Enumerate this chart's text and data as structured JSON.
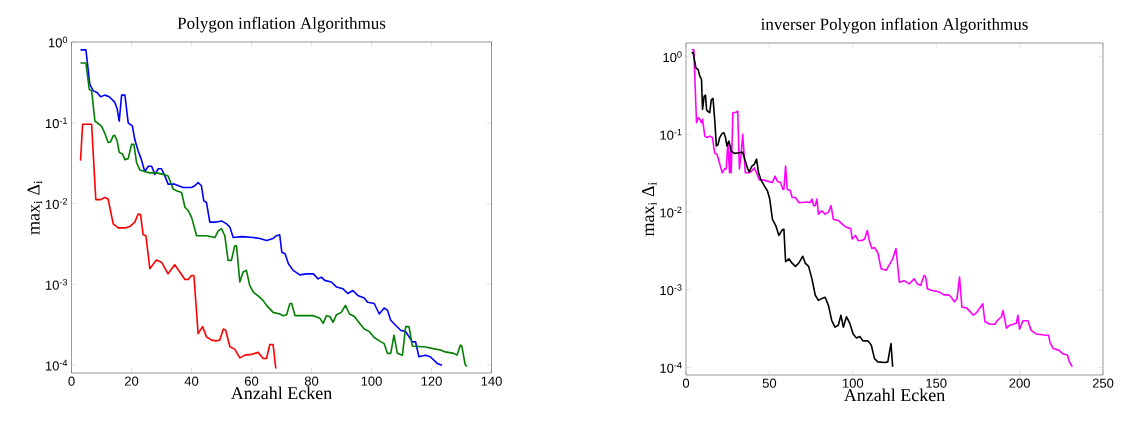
{
  "chart_data": [
    {
      "type": "line",
      "title": "Polygon inflation Algorithmus",
      "xlabel": "Anzahl Ecken",
      "ylabel": "max$_{i}$ Δ$_{i}$",
      "log": "y",
      "xlim": [
        0,
        140
      ],
      "xticks": [
        0,
        20,
        40,
        60,
        80,
        100,
        120,
        140
      ],
      "ylim": [
        8e-05,
        1
      ],
      "yticks": [
        {
          "value": 0.0001,
          "label": "10$^{-4}$"
        },
        {
          "value": 0.001,
          "label": "10$^{-3}$"
        },
        {
          "value": 0.01,
          "label": "10$^{-2}$"
        },
        {
          "value": 0.1,
          "label": "10$^{-1}$"
        },
        {
          "value": 1,
          "label": "10$^{0}$"
        }
      ],
      "series": [
        {
          "color": "#0000ff",
          "x": [
            3,
            4.8,
            6.1,
            7.2,
            8.6,
            9.7,
            11.1,
            12.6,
            14.4,
            15.2,
            15.9,
            16.7,
            17.8,
            18.9,
            20.3,
            21.1,
            22.2,
            23.3,
            24.4,
            25.6,
            26.7,
            27.8,
            28.9,
            30,
            31.1,
            32.2,
            34.4,
            37.2,
            40,
            41.1,
            42.2,
            43.3,
            44.1,
            45,
            46.1,
            48.3,
            50,
            51.7,
            52.8,
            53.9,
            56.7,
            60.6,
            62.8,
            65,
            67.2,
            68.3,
            69.4,
            70.1,
            71.2,
            72.3,
            73.9,
            76.1,
            78.3,
            80.6,
            82.2,
            83.3,
            84.4,
            86.6,
            88.3,
            90.5,
            92.1,
            93.8,
            95.4,
            97.6,
            98.7,
            100.9,
            102.6,
            104.2,
            105.3,
            106.4,
            108.1,
            109.7,
            111.4,
            113.6,
            114.7,
            115.8,
            118,
            119.6,
            121.9,
            123.5
          ],
          "values": [
            0.8,
            0.8,
            0.3,
            0.25,
            0.235,
            0.21,
            0.22,
            0.21,
            0.18,
            0.15,
            0.105,
            0.22,
            0.22,
            0.1,
            0.091,
            0.062,
            0.045,
            0.035,
            0.025,
            0.029,
            0.029,
            0.023,
            0.027,
            0.027,
            0.022,
            0.0174,
            0.0174,
            0.0158,
            0.0158,
            0.0166,
            0.0182,
            0.0166,
            0.0108,
            0.0103,
            0.0059,
            0.0059,
            0.0061,
            0.0056,
            0.0051,
            0.0038,
            0.0039,
            0.0038,
            0.0037,
            0.0035,
            0.0037,
            0.004,
            0.0041,
            0.0025,
            0.0024,
            0.0018,
            0.00149,
            0.00131,
            0.00135,
            0.00135,
            0.00117,
            0.00123,
            0.00112,
            0.00107,
            0.00093,
            0.00088,
            0.00077,
            0.00084,
            0.00073,
            0.00068,
            0.0006,
            0.00058,
            0.00043,
            0.00051,
            0.00048,
            0.00036,
            0.00031,
            0.00027,
            0.00026,
            0.000194,
            0.000194,
            0.000127,
            0.000133,
            0.000127,
            0.000105,
            0.0001
          ]
        },
        {
          "color": "#007f00",
          "x": [
            3,
            4.8,
            5.9,
            6.7,
            7.8,
            8.9,
            10,
            11.1,
            12.2,
            13,
            13.9,
            14.4,
            15.2,
            15.9,
            17,
            17.8,
            18.9,
            20,
            20.8,
            21.7,
            22.8,
            24.4,
            26.1,
            28.3,
            30.6,
            32.2,
            33.9,
            35,
            36.7,
            37.8,
            38.9,
            40,
            41.7,
            45,
            47.8,
            48.9,
            50,
            51.1,
            52.2,
            53.3,
            54.4,
            55,
            56.1,
            57.2,
            58.3,
            59.4,
            60.6,
            62.2,
            63.9,
            65,
            67.2,
            69.4,
            70.6,
            71.7,
            72.8,
            73.4,
            74.5,
            77.2,
            80.6,
            82.8,
            83.9,
            85,
            86.1,
            87.2,
            88.3,
            89.9,
            91.3,
            92.7,
            94.3,
            96,
            97.6,
            99.3,
            100.9,
            102.6,
            104.2,
            105.3,
            106.4,
            107.5,
            108.6,
            110.3,
            111.4,
            112.5,
            113.6,
            118,
            121.3,
            123,
            124.6,
            127.4,
            128.5,
            129.6,
            130.1,
            131.2,
            131.8
          ],
          "values": [
            0.55,
            0.55,
            0.26,
            0.25,
            0.105,
            0.098,
            0.091,
            0.074,
            0.057,
            0.058,
            0.069,
            0.07,
            0.06,
            0.043,
            0.041,
            0.035,
            0.036,
            0.054,
            0.054,
            0.032,
            0.026,
            0.025,
            0.024,
            0.024,
            0.023,
            0.022,
            0.0151,
            0.0144,
            0.0137,
            0.009,
            0.0082,
            0.0068,
            0.004,
            0.004,
            0.0038,
            0.0046,
            0.0049,
            0.004,
            0.00198,
            0.00198,
            0.003,
            0.003,
            0.00107,
            0.00142,
            0.00149,
            0.00097,
            0.0008,
            0.00072,
            0.00063,
            0.00055,
            0.00045,
            0.00043,
            0.00041,
            0.00042,
            0.00058,
            0.00058,
            0.00041,
            0.00041,
            0.00041,
            0.00038,
            0.00033,
            0.00041,
            0.0004,
            0.00034,
            0.00042,
            0.00045,
            0.00055,
            0.00043,
            0.0004,
            0.00033,
            0.00028,
            0.00026,
            0.00022,
            0.0002,
            0.000185,
            0.00014,
            0.00014,
            0.000235,
            0.00014,
            0.000133,
            0.0003,
            0.0003,
            0.000173,
            0.000168,
            0.000158,
            0.000154,
            0.000146,
            0.00014,
            0.000133,
            0.000177,
            0.000173,
            0.000102,
            9.6e-05
          ]
        },
        {
          "color": "#ff0000",
          "x": [
            3,
            3.7,
            6.7,
            8.1,
            9.7,
            11.1,
            12.2,
            13.9,
            15.6,
            17.8,
            19.4,
            21.1,
            22.2,
            23,
            23.9,
            24.8,
            26.1,
            28.3,
            30,
            32.2,
            34.4,
            36.1,
            37.8,
            38.9,
            40,
            40.8,
            42.2,
            43.7,
            45,
            46.7,
            48.3,
            49.4,
            50.6,
            51.4,
            52.8,
            54.4,
            56.1,
            57.8,
            60,
            62.2,
            63.9,
            65,
            66.1,
            67.2,
            68.1
          ],
          "values": [
            0.034,
            0.096,
            0.096,
            0.0112,
            0.0112,
            0.0119,
            0.0114,
            0.0056,
            0.005,
            0.005,
            0.0052,
            0.0059,
            0.0074,
            0.0073,
            0.0041,
            0.004,
            0.00156,
            0.002,
            0.00188,
            0.00135,
            0.00175,
            0.00142,
            0.00115,
            0.00115,
            0.00129,
            0.00129,
            0.000246,
            0.0003,
            0.000224,
            0.000204,
            0.0002,
            0.000204,
            0.00028,
            0.00027,
            0.000169,
            0.000158,
            0.000123,
            0.000133,
            0.000136,
            0.000144,
            0.000121,
            0.000121,
            0.00018,
            0.00018,
            9.1e-05
          ]
        }
      ]
    },
    {
      "type": "line",
      "title": "inverser Polygon inflation Algorithmus",
      "xlabel": "Anzahl Ecken",
      "ylabel": "max$_{i}$ Δ$_{i}$",
      "log": "y",
      "xlim": [
        0,
        250
      ],
      "xticks": [
        0,
        50,
        100,
        150,
        200,
        250
      ],
      "ylim": [
        8e-05,
        1.5
      ],
      "yticks": [
        {
          "value": 0.0001,
          "label": "10$^{-4}$"
        },
        {
          "value": 0.001,
          "label": "10$^{-3}$"
        },
        {
          "value": 0.01,
          "label": "10$^{-2}$"
        },
        {
          "value": 0.1,
          "label": "10$^{-1}$"
        },
        {
          "value": 1,
          "label": "10$^{0}$"
        }
      ],
      "series": [
        {
          "color": "#ff00ff",
          "x": [
            3.4,
            4.7,
            6.3,
            7.3,
            8.3,
            9.3,
            9.9,
            11.3,
            12.6,
            14.2,
            15.8,
            17.2,
            18.6,
            19.8,
            20.6,
            21.7,
            23.1,
            24.1,
            25.1,
            26.1,
            26.7,
            27.1,
            28.1,
            30,
            31,
            32,
            33,
            34,
            35.6,
            37.9,
            39.5,
            40.9,
            42.3,
            43.9,
            45.8,
            48.8,
            51.8,
            53.4,
            54.7,
            56.7,
            58.1,
            58.7,
            59.7,
            60.7,
            62.6,
            63.6,
            65.6,
            67.6,
            69.6,
            72.5,
            74.5,
            75.5,
            76.5,
            77.5,
            78.5,
            79.4,
            81.4,
            83.4,
            85.4,
            86.96,
            88.3,
            91.3,
            94.3,
            96.2,
            98.8,
            99.6,
            101.6,
            103.2,
            105.5,
            107.1,
            108.7,
            110.1,
            111.5,
            113,
            115,
            117,
            120,
            123.9,
            125.9,
            127.9,
            130.8,
            133.8,
            136.8,
            138.7,
            140.7,
            142.7,
            143.7,
            144.7,
            147.6,
            150.6,
            152.6,
            154.5,
            157.5,
            158.9,
            160.9,
            162.5,
            164,
            165.4,
            168.4,
            172.3,
            174.3,
            177.9,
            179.2,
            182.2,
            185.2,
            186.6,
            189.1,
            190.1,
            192.1,
            194.1,
            198,
            199,
            200,
            202,
            205,
            206.9,
            209.9,
            215.8,
            217.4,
            218.2,
            220.2,
            223.7,
            225.7,
            228.7,
            230,
            231.6
          ],
          "values": [
            1.23,
            1.23,
            0.141,
            0.164,
            0.156,
            0.141,
            0.156,
            0.095,
            0.091,
            0.095,
            0.091,
            0.058,
            0.055,
            0.045,
            0.039,
            0.032,
            0.036,
            0.036,
            0.078,
            0.032,
            0.071,
            0.032,
            0.19,
            0.193,
            0.199,
            0.036,
            0.053,
            0.1,
            0.032,
            0.032,
            0.034,
            0.037,
            0.032,
            0.026,
            0.026,
            0.025,
            0.024,
            0.029,
            0.025,
            0.024,
            0.0197,
            0.0197,
            0.039,
            0.0197,
            0.0188,
            0.0154,
            0.0154,
            0.0133,
            0.0133,
            0.0135,
            0.0133,
            0.0147,
            0.0121,
            0.0121,
            0.0147,
            0.0094,
            0.0104,
            0.0094,
            0.0099,
            0.0121,
            0.0081,
            0.0078,
            0.0068,
            0.0064,
            0.0061,
            0.0045,
            0.005,
            0.0043,
            0.0043,
            0.0045,
            0.0058,
            0.0041,
            0.0034,
            0.0035,
            0.003,
            0.00186,
            0.00178,
            0.0025,
            0.0034,
            0.00125,
            0.00131,
            0.00119,
            0.00138,
            0.00119,
            0.00114,
            0.00153,
            0.00146,
            0.00103,
            0.00098,
            0.00095,
            0.00092,
            0.00086,
            0.00086,
            0.00081,
            0.0007,
            0.00077,
            0.00146,
            0.0006,
            0.00058,
            0.00047,
            0.00051,
            0.00066,
            0.00039,
            0.00036,
            0.00036,
            0.0004,
            0.00045,
            0.00054,
            0.00032,
            0.00035,
            0.00037,
            0.00047,
            0.00031,
            0.0004,
            0.0004,
            0.0003,
            0.00027,
            0.00026,
            0.00026,
            0.00021,
            0.000175,
            0.000166,
            0.000151,
            0.000144,
            0.000116,
            0.000102
          ]
        },
        {
          "color": "#000000",
          "x": [
            3.4,
            4.3,
            4.7,
            5.9,
            7.3,
            8.3,
            9.3,
            9.9,
            10.9,
            11.7,
            12.3,
            12.8,
            14.2,
            15.2,
            16.2,
            17.2,
            18.2,
            19.2,
            20.2,
            21.7,
            22.7,
            23.7,
            24.5,
            25.7,
            27.1,
            29.1,
            32,
            34,
            35.6,
            37,
            37.9,
            39.5,
            40.9,
            42.3,
            43.5,
            44.9,
            46.8,
            48.8,
            50.2,
            51.8,
            53.8,
            55.7,
            57.7,
            58.7,
            59.7,
            61.7,
            63.6,
            65.6,
            67.6,
            70,
            71.5,
            73.5,
            75.5,
            77.5,
            79.4,
            81.4,
            83.4,
            85.4,
            87.4,
            89.3,
            91.3,
            92.9,
            94.3,
            96.2,
            98.2,
            100.2,
            102.2,
            104.2,
            106.1,
            109.1,
            111.1,
            113,
            115,
            119,
            121,
            122,
            122.9,
            123.9
          ],
          "values": [
            1.11,
            1.14,
            1.0,
            0.72,
            0.68,
            0.56,
            0.51,
            0.21,
            0.31,
            0.32,
            0.21,
            0.2,
            0.19,
            0.28,
            0.29,
            0.156,
            0.071,
            0.074,
            0.091,
            0.103,
            0.105,
            0.091,
            0.071,
            0.082,
            0.061,
            0.057,
            0.058,
            0.059,
            0.045,
            0.036,
            0.033,
            0.039,
            0.041,
            0.048,
            0.032,
            0.026,
            0.022,
            0.0188,
            0.0147,
            0.0081,
            0.0067,
            0.005,
            0.0059,
            0.006,
            0.0023,
            0.0025,
            0.0022,
            0.002,
            0.0022,
            0.0027,
            0.0022,
            0.002,
            0.00138,
            0.00085,
            0.00073,
            0.00077,
            0.0008,
            0.00063,
            0.0004,
            0.00033,
            0.00035,
            0.00047,
            0.00033,
            0.00045,
            0.00037,
            0.00027,
            0.00024,
            0.00025,
            0.00022,
            0.00022,
            0.000193,
            0.00013,
            0.000118,
            0.000116,
            0.000118,
            0.000159,
            0.000203,
            0.000102
          ]
        }
      ]
    }
  ]
}
